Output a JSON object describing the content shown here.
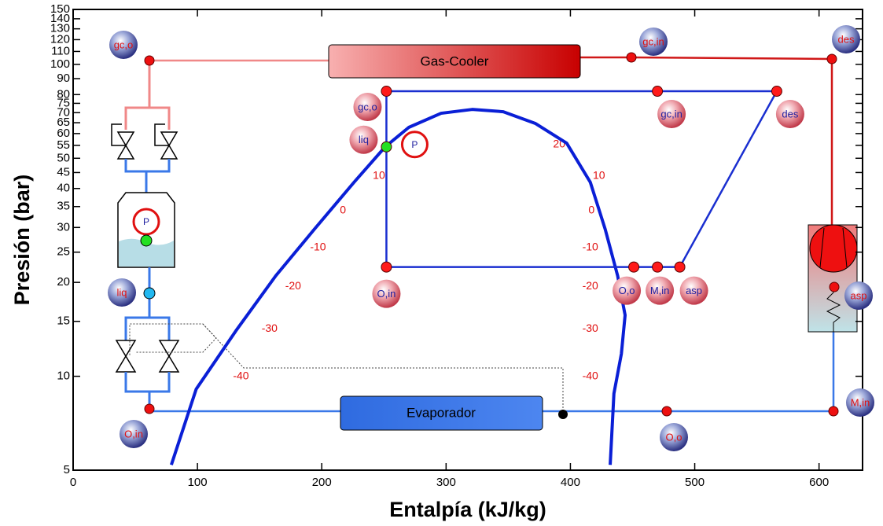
{
  "chart_data": {
    "type": "line",
    "xlabel": "Entalpía (kJ/kg)",
    "ylabel": "Presión (bar)",
    "xlim": [
      0,
      635
    ],
    "ylim": [
      5,
      150
    ],
    "yscale": "log",
    "xticks": [
      0,
      100,
      200,
      300,
      400,
      500,
      600
    ],
    "yticks": [
      5,
      10,
      15,
      20,
      25,
      30,
      35,
      40,
      45,
      50,
      55,
      60,
      65,
      70,
      75,
      80,
      90,
      100,
      110,
      120,
      130,
      140,
      150
    ],
    "series": [
      {
        "color": "#0a1fd6",
        "width": 4,
        "x": [
          79,
          99,
          131,
          163,
          194,
          226,
          251,
          270,
          296,
          321,
          346,
          372,
          397,
          416,
          428,
          438,
          444,
          441,
          435,
          432
        ],
        "values": [
          5.2,
          9.1,
          14.0,
          21,
          29.6,
          41.9,
          54.4,
          62.8,
          69.7,
          71.7,
          70.5,
          64.6,
          55.9,
          41.9,
          29.6,
          21,
          15.7,
          11.8,
          8.8,
          5.2
        ]
      },
      {
        "color": "#1a2fd0",
        "width": 2.5,
        "x": [
          252,
          252,
          470,
          566,
          488,
          470,
          451,
          252
        ],
        "values": [
          22.4,
          82,
          82,
          82,
          22.4,
          22.4,
          22.4,
          22.4
        ]
      }
    ],
    "points": [
      {
        "label": "gc,o",
        "x": 252,
        "y": 82,
        "color": "#ff1a1a"
      },
      {
        "label": "gc,in",
        "x": 470,
        "y": 82,
        "color": "#ff1a1a"
      },
      {
        "label": "des",
        "x": 566,
        "y": 82,
        "color": "#ff1a1a"
      },
      {
        "label": "O,in",
        "x": 252,
        "y": 22.4,
        "color": "#ff1a1a"
      },
      {
        "label": "O,o",
        "x": 451,
        "y": 22.4,
        "color": "#ff1a1a"
      },
      {
        "label": "M,in",
        "x": 470,
        "y": 22.4,
        "color": "#ff1a1a"
      },
      {
        "label": "asp",
        "x": 488,
        "y": 22.4,
        "color": "#ff1a1a"
      },
      {
        "label": "liq",
        "x": 252,
        "y": 54.4,
        "color": "#22e022"
      }
    ],
    "isotherm_labels": [
      {
        "text": "10",
        "x": 246,
        "y": 43.9
      },
      {
        "text": "0",
        "x": 217,
        "y": 34
      },
      {
        "text": "-10",
        "x": 197,
        "y": 25.9
      },
      {
        "text": "-20",
        "x": 177,
        "y": 19.4
      },
      {
        "text": "-30",
        "x": 158,
        "y": 14.2
      },
      {
        "text": "-40",
        "x": 135,
        "y": 10
      },
      {
        "text": "20",
        "x": 391,
        "y": 55.3
      },
      {
        "text": "10",
        "x": 423,
        "y": 43.9
      },
      {
        "text": "0",
        "x": 417,
        "y": 34
      },
      {
        "text": "-10",
        "x": 416,
        "y": 25.9
      },
      {
        "text": "-20",
        "x": 416,
        "y": 19.4
      },
      {
        "text": "-30",
        "x": 416,
        "y": 14.2
      },
      {
        "text": "-40",
        "x": 416,
        "y": 10
      }
    ],
    "schematic": {
      "gas_cooler": "Gas-Cooler",
      "evaporator": "Evaporador",
      "pressure_symbol": "P",
      "labels": [
        "gc,o",
        "liq",
        "O,in",
        "gc,in",
        "des",
        "asp",
        "M,in",
        "O,o"
      ]
    }
  }
}
